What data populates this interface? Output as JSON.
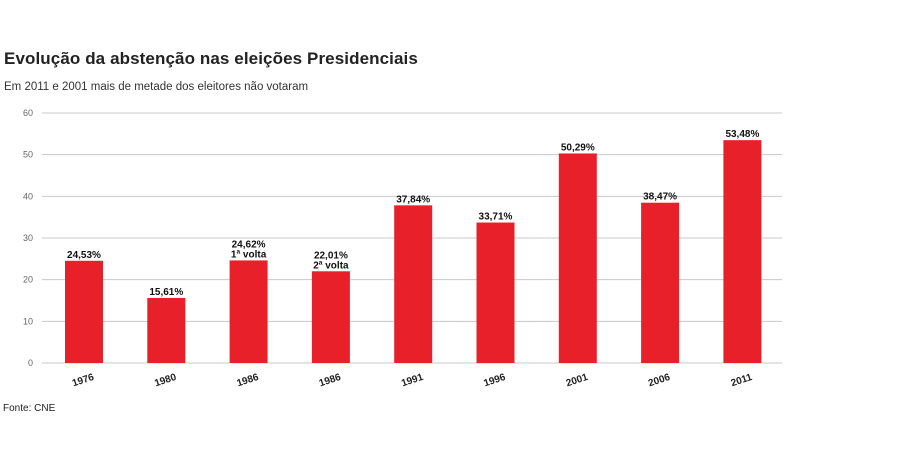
{
  "header": {
    "title": "Evolução da abstenção nas eleições Presidenciais",
    "subtitle": "Em 2011 e 2001 mais de metade dos eleitores não votaram"
  },
  "footer": {
    "source": "Fonte: CNE"
  },
  "colors": {
    "bar": "#e8202a",
    "grid": "#c8c8c8"
  },
  "chart_data": {
    "type": "bar",
    "title": "Evolução da abstenção nas eleições Presidenciais",
    "subtitle": "Em 2011 e 2001 mais de metade dos eleitores não votaram",
    "xlabel": "",
    "ylabel": "",
    "ylim": [
      0,
      60
    ],
    "yticks": [
      0,
      10,
      20,
      30,
      40,
      50,
      60
    ],
    "grid": true,
    "categories": [
      "1976",
      "1980",
      "1986",
      "1986",
      "1991",
      "1996",
      "2001",
      "2006",
      "2011"
    ],
    "values": [
      24.53,
      15.61,
      24.62,
      22.01,
      37.84,
      33.71,
      50.29,
      38.47,
      53.48
    ],
    "data_labels": [
      "24,53%",
      "15,61%",
      "24,62%",
      "22,01%",
      "37,84%",
      "33,71%",
      "50,29%",
      "38,47%",
      "53,48%"
    ],
    "annotations": [
      "",
      "",
      "1ª volta",
      "2ª volta",
      "",
      "",
      "",
      "",
      ""
    ]
  }
}
